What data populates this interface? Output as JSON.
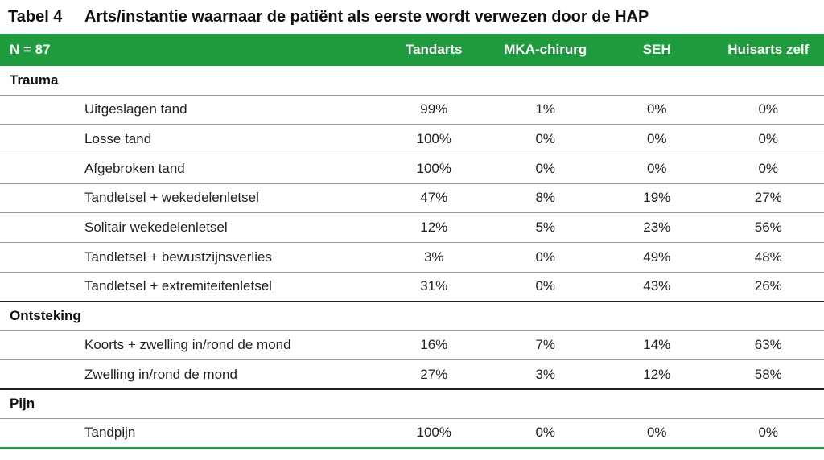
{
  "caption": {
    "number": "Tabel 4",
    "title": "Arts/instantie waarnaar de patiënt als eerste wordt verwezen door de HAP"
  },
  "colors": {
    "header_bg": "#1e9c3d",
    "header_text": "#ffffff"
  },
  "header": [
    "N = 87",
    "Tandarts",
    "MKA-chirurg",
    "SEH",
    "Huisarts zelf"
  ],
  "groups": [
    {
      "name": "Trauma",
      "rows": [
        {
          "label": "Uitgeslagen tand",
          "values": [
            "99%",
            "1%",
            "0%",
            "0%"
          ]
        },
        {
          "label": "Losse tand",
          "values": [
            "100%",
            "0%",
            "0%",
            "0%"
          ]
        },
        {
          "label": "Afgebroken tand",
          "values": [
            "100%",
            "0%",
            "0%",
            "0%"
          ]
        },
        {
          "label": "Tandletsel + wekedelenletsel",
          "values": [
            "47%",
            "8%",
            "19%",
            "27%"
          ]
        },
        {
          "label": "Solitair wekedelenletsel",
          "values": [
            "12%",
            "5%",
            "23%",
            "56%"
          ]
        },
        {
          "label": "Tandletsel + bewustzijnsverlies",
          "values": [
            "3%",
            "0%",
            "49%",
            "48%"
          ]
        },
        {
          "label": "Tandletsel + extremiteitenletsel",
          "values": [
            "31%",
            "0%",
            "43%",
            "26%"
          ]
        }
      ]
    },
    {
      "name": "Ontsteking",
      "rows": [
        {
          "label": "Koorts + zwelling in/rond de mond",
          "values": [
            "16%",
            "7%",
            "14%",
            "63%"
          ]
        },
        {
          "label": "Zwelling in/rond de mond",
          "values": [
            "27%",
            "3%",
            "12%",
            "58%"
          ]
        }
      ]
    },
    {
      "name": "Pijn",
      "rows": [
        {
          "label": "Tandpijn",
          "values": [
            "100%",
            "0%",
            "0%",
            "0%"
          ]
        }
      ]
    }
  ]
}
